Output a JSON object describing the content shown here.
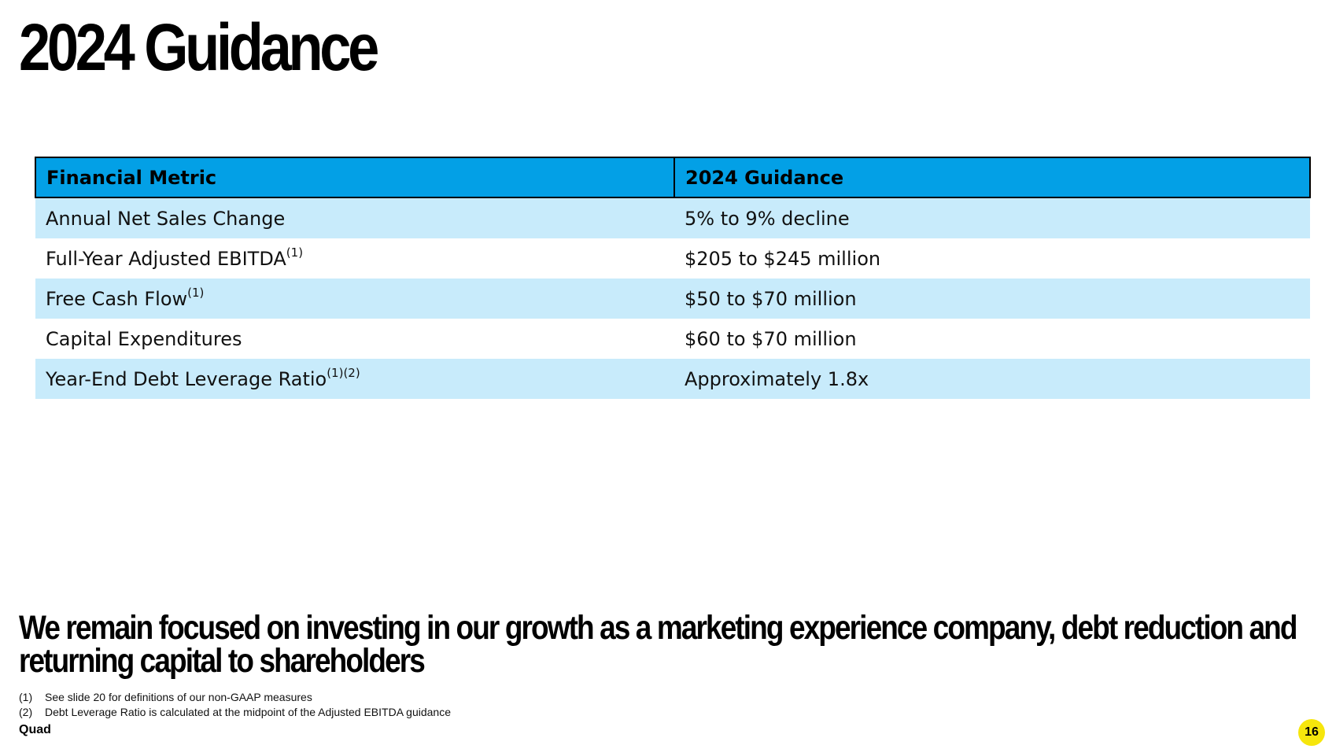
{
  "title": "2024 Guidance",
  "table": {
    "headers": [
      "Financial Metric",
      "2024 Guidance"
    ],
    "rows": [
      {
        "metric": "Annual Net Sales Change",
        "sup": "",
        "guidance": "5% to 9% decline"
      },
      {
        "metric": "Full-Year Adjusted EBITDA",
        "sup": "(1)",
        "guidance": "$205 to $245 million"
      },
      {
        "metric": "Free Cash Flow",
        "sup": "(1)",
        "guidance": "$50 to $70 million"
      },
      {
        "metric": "Capital Expenditures",
        "sup": "",
        "guidance": "$60 to $70 million"
      },
      {
        "metric": "Year-End Debt Leverage Ratio",
        "sup": "(1)(2)",
        "guidance": "Approximately 1.8x"
      }
    ]
  },
  "tagline": "We remain focused on investing in our growth as a marketing experience company, debt reduction and returning capital to shareholders",
  "footnotes": [
    {
      "mark": "(1)",
      "text": "See slide 20 for definitions of our non-GAAP measures"
    },
    {
      "mark": "(2)",
      "text": "Debt Leverage Ratio is calculated at the midpoint of the Adjusted EBITDA guidance"
    }
  ],
  "brand": "Quad",
  "page_number": "16",
  "colors": {
    "header_blue": "#03a0e6",
    "row_shade": "#c8ebfb",
    "page_badge": "#f6e60c"
  }
}
